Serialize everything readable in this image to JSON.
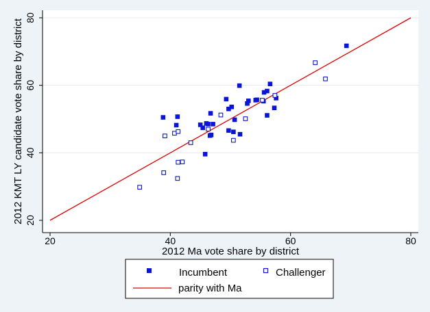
{
  "chart_data": {
    "type": "scatter",
    "title": "",
    "xlabel": "2012 Ma vote share by district",
    "ylabel": "2012 KMT LY candidate vote share by district",
    "xlim": [
      20,
      80
    ],
    "ylim": [
      20,
      80
    ],
    "xticks": [
      "20",
      "40",
      "60",
      "80"
    ],
    "yticks": [
      "20",
      "40",
      "60",
      "80"
    ],
    "grid": "horizontal",
    "legend_position": "bottom",
    "series": [
      {
        "name": "Incumbent",
        "marker": "filled-square",
        "color": "#0a14d6",
        "points": [
          [
            38.8,
            50.5
          ],
          [
            41.2,
            50.7
          ],
          [
            41.0,
            48.2
          ],
          [
            45.0,
            48.3
          ],
          [
            45.4,
            47.4
          ],
          [
            46.0,
            48.7
          ],
          [
            46.3,
            48.5
          ],
          [
            46.7,
            51.7
          ],
          [
            47.1,
            48.5
          ],
          [
            46.6,
            45.1
          ],
          [
            46.8,
            45.3
          ],
          [
            45.8,
            39.6
          ],
          [
            49.3,
            55.9
          ],
          [
            49.7,
            53.0
          ],
          [
            50.2,
            53.6
          ],
          [
            49.7,
            46.6
          ],
          [
            50.5,
            46.2
          ],
          [
            50.7,
            49.8
          ],
          [
            51.5,
            59.9
          ],
          [
            51.6,
            45.5
          ],
          [
            52.8,
            54.6
          ],
          [
            53.0,
            55.4
          ],
          [
            54.2,
            55.6
          ],
          [
            54.4,
            55.7
          ],
          [
            55.5,
            55.3
          ],
          [
            55.6,
            57.9
          ],
          [
            56.1,
            58.3
          ],
          [
            56.6,
            60.4
          ],
          [
            57.3,
            53.3
          ],
          [
            57.6,
            56.2
          ],
          [
            56.1,
            51.1
          ],
          [
            69.3,
            71.7
          ]
        ]
      },
      {
        "name": "Challenger",
        "marker": "hollow-square",
        "color": "#0a14d6",
        "points": [
          [
            34.9,
            29.8
          ],
          [
            38.9,
            34.1
          ],
          [
            39.1,
            45.0
          ],
          [
            40.7,
            45.8
          ],
          [
            41.3,
            46.3
          ],
          [
            41.3,
            37.2
          ],
          [
            42.0,
            37.3
          ],
          [
            41.2,
            32.4
          ],
          [
            43.4,
            43.0
          ],
          [
            46.3,
            47.0
          ],
          [
            48.4,
            51.2
          ],
          [
            50.5,
            43.7
          ],
          [
            52.5,
            50.1
          ],
          [
            55.3,
            55.6
          ],
          [
            57.4,
            57.0
          ],
          [
            64.1,
            66.7
          ],
          [
            65.8,
            61.9
          ]
        ]
      },
      {
        "name": "parity with Ma",
        "type": "line",
        "color": "#e00000",
        "x": [
          20,
          80
        ],
        "y": [
          20,
          80
        ]
      }
    ]
  }
}
